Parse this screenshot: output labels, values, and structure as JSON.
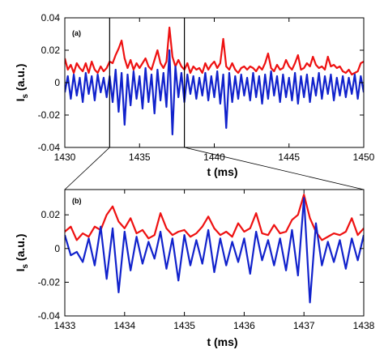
{
  "chart_data": [
    {
      "type": "line",
      "panel_label": "(a)",
      "xlabel": "t (ms)",
      "ylabel_main": "I",
      "ylabel_sub": "s",
      "ylabel_tail": " (a.u.)",
      "xlim": [
        1430,
        1450
      ],
      "ylim": [
        -0.04,
        0.04
      ],
      "x_ticks": [
        "1430",
        "1435",
        "1440",
        "1445",
        "1450"
      ],
      "y_ticks": [
        "-0.04",
        "-0.02",
        "0",
        "0.02",
        "0.04"
      ],
      "zoom_window": [
        1433,
        1438
      ],
      "series": [
        {
          "color": "#ee1111",
          "x": [
            1430.0,
            1430.2,
            1430.4,
            1430.6,
            1430.8,
            1431.0,
            1431.2,
            1431.4,
            1431.6,
            1431.8,
            1432.0,
            1432.2,
            1432.4,
            1432.6,
            1432.8,
            1433.0,
            1433.2,
            1433.4,
            1433.6,
            1433.8,
            1434.0,
            1434.2,
            1434.4,
            1434.6,
            1434.8,
            1435.0,
            1435.2,
            1435.4,
            1435.6,
            1435.8,
            1436.0,
            1436.2,
            1436.4,
            1436.6,
            1436.8,
            1437.0,
            1437.2,
            1437.4,
            1437.6,
            1437.8,
            1438.0,
            1438.2,
            1438.4,
            1438.6,
            1438.8,
            1439.0,
            1439.2,
            1439.4,
            1439.6,
            1439.8,
            1440.0,
            1440.2,
            1440.4,
            1440.6,
            1440.8,
            1441.0,
            1441.2,
            1441.4,
            1441.6,
            1441.8,
            1442.0,
            1442.2,
            1442.4,
            1442.6,
            1442.8,
            1443.0,
            1443.2,
            1443.4,
            1443.6,
            1443.8,
            1444.0,
            1444.2,
            1444.4,
            1444.6,
            1444.8,
            1445.0,
            1445.2,
            1445.4,
            1445.6,
            1445.8,
            1446.0,
            1446.2,
            1446.4,
            1446.6,
            1446.8,
            1447.0,
            1447.2,
            1447.4,
            1447.6,
            1447.8,
            1448.0,
            1448.2,
            1448.4,
            1448.6,
            1448.8,
            1449.0,
            1449.2,
            1449.4,
            1449.6,
            1449.8,
            1450.0
          ],
          "y": [
            0.015,
            0.008,
            0.011,
            0.006,
            0.012,
            0.009,
            0.007,
            0.012,
            0.006,
            0.013,
            0.008,
            0.006,
            0.01,
            0.007,
            0.009,
            0.013,
            0.012,
            0.017,
            0.021,
            0.026,
            0.015,
            0.009,
            0.014,
            0.008,
            0.012,
            0.009,
            0.012,
            0.015,
            0.01,
            0.008,
            0.014,
            0.02,
            0.012,
            0.009,
            0.013,
            0.034,
            0.016,
            0.01,
            0.014,
            0.01,
            0.008,
            0.012,
            0.006,
            0.01,
            0.008,
            0.009,
            0.006,
            0.012,
            0.008,
            0.011,
            0.013,
            0.009,
            0.012,
            0.027,
            0.01,
            0.008,
            0.012,
            0.008,
            0.006,
            0.009,
            0.01,
            0.008,
            0.01,
            0.009,
            0.007,
            0.01,
            0.008,
            0.012,
            0.018,
            0.009,
            0.007,
            0.011,
            0.008,
            0.009,
            0.014,
            0.01,
            0.008,
            0.012,
            0.017,
            0.008,
            0.009,
            0.012,
            0.01,
            0.016,
            0.011,
            0.009,
            0.01,
            0.008,
            0.016,
            0.01,
            0.011,
            0.009,
            0.01,
            0.007,
            0.006,
            0.008,
            0.005,
            0.006,
            0.007,
            0.012,
            0.013
          ]
        },
        {
          "color": "#1122cc",
          "x": [
            1430.0,
            1430.2,
            1430.4,
            1430.6,
            1430.8,
            1431.0,
            1431.2,
            1431.4,
            1431.6,
            1431.8,
            1432.0,
            1432.2,
            1432.4,
            1432.6,
            1432.8,
            1433.0,
            1433.2,
            1433.4,
            1433.6,
            1433.8,
            1434.0,
            1434.2,
            1434.4,
            1434.6,
            1434.8,
            1435.0,
            1435.2,
            1435.4,
            1435.6,
            1435.8,
            1436.0,
            1436.2,
            1436.4,
            1436.6,
            1436.8,
            1437.0,
            1437.2,
            1437.4,
            1437.6,
            1437.8,
            1438.0,
            1438.2,
            1438.4,
            1438.6,
            1438.8,
            1439.0,
            1439.2,
            1439.4,
            1439.6,
            1439.8,
            1440.0,
            1440.2,
            1440.4,
            1440.6,
            1440.8,
            1441.0,
            1441.2,
            1441.4,
            1441.6,
            1441.8,
            1442.0,
            1442.2,
            1442.4,
            1442.6,
            1442.8,
            1443.0,
            1443.2,
            1443.4,
            1443.6,
            1443.8,
            1444.0,
            1444.2,
            1444.4,
            1444.6,
            1444.8,
            1445.0,
            1445.2,
            1445.4,
            1445.6,
            1445.8,
            1446.0,
            1446.2,
            1446.4,
            1446.6,
            1446.8,
            1447.0,
            1447.2,
            1447.4,
            1447.6,
            1447.8,
            1448.0,
            1448.2,
            1448.4,
            1448.6,
            1448.8,
            1449.0,
            1449.2,
            1449.4,
            1449.6,
            1449.8,
            1450.0
          ],
          "y": [
            -0.006,
            0.004,
            -0.01,
            0.005,
            -0.008,
            0.003,
            -0.012,
            0.006,
            -0.007,
            0.004,
            -0.011,
            0.005,
            -0.006,
            0.003,
            -0.009,
            0.004,
            -0.012,
            0.008,
            -0.018,
            0.006,
            -0.026,
            0.005,
            -0.014,
            0.007,
            -0.01,
            0.004,
            -0.016,
            0.009,
            -0.012,
            0.005,
            -0.019,
            0.008,
            -0.011,
            0.006,
            -0.015,
            0.02,
            -0.032,
            0.01,
            -0.009,
            0.006,
            -0.012,
            0.005,
            -0.007,
            0.004,
            -0.01,
            0.003,
            -0.008,
            0.006,
            -0.011,
            0.004,
            -0.009,
            0.007,
            -0.013,
            0.005,
            -0.028,
            0.006,
            -0.012,
            0.004,
            -0.01,
            0.005,
            -0.008,
            0.003,
            -0.011,
            0.006,
            -0.009,
            0.004,
            -0.013,
            0.005,
            -0.01,
            0.007,
            -0.008,
            0.004,
            -0.012,
            0.005,
            -0.009,
            0.003,
            -0.011,
            0.006,
            -0.013,
            0.004,
            -0.009,
            0.005,
            -0.012,
            0.003,
            -0.008,
            0.006,
            -0.01,
            0.004,
            -0.007,
            0.005,
            -0.011,
            0.003,
            -0.008,
            0.004,
            -0.009,
            0.003,
            -0.007,
            0.005,
            -0.01,
            0.004,
            -0.006
          ]
        }
      ]
    },
    {
      "type": "line",
      "panel_label": "(b)",
      "xlabel": "t (ms)",
      "ylabel_main": "I",
      "ylabel_sub": "s",
      "ylabel_tail": " (a.u.)",
      "xlim": [
        1433,
        1438
      ],
      "ylim": [
        -0.04,
        0.035
      ],
      "x_ticks": [
        "1433",
        "1434",
        "1435",
        "1436",
        "1437",
        "1438"
      ],
      "y_ticks": [
        "-0.04",
        "-0.02",
        "0",
        "0.02"
      ],
      "series": [
        {
          "color": "#ee1111",
          "x": [
            1433.0,
            1433.1,
            1433.2,
            1433.3,
            1433.4,
            1433.5,
            1433.6,
            1433.7,
            1433.8,
            1433.9,
            1434.0,
            1434.1,
            1434.2,
            1434.3,
            1434.4,
            1434.5,
            1434.6,
            1434.7,
            1434.8,
            1434.9,
            1435.0,
            1435.1,
            1435.2,
            1435.3,
            1435.4,
            1435.5,
            1435.6,
            1435.7,
            1435.8,
            1435.9,
            1436.0,
            1436.1,
            1436.2,
            1436.3,
            1436.4,
            1436.5,
            1436.6,
            1436.7,
            1436.8,
            1436.9,
            1437.0,
            1437.1,
            1437.2,
            1437.3,
            1437.4,
            1437.5,
            1437.6,
            1437.7,
            1437.8,
            1437.9,
            1438.0
          ],
          "y": [
            0.01,
            0.013,
            0.005,
            0.009,
            0.007,
            0.013,
            0.011,
            0.02,
            0.025,
            0.016,
            0.012,
            0.018,
            0.009,
            0.011,
            0.006,
            0.008,
            0.021,
            0.012,
            0.008,
            0.01,
            0.011,
            0.007,
            0.009,
            0.013,
            0.019,
            0.012,
            0.008,
            0.01,
            0.007,
            0.015,
            0.01,
            0.012,
            0.021,
            0.009,
            0.008,
            0.014,
            0.009,
            0.01,
            0.017,
            0.02,
            0.032,
            0.018,
            0.01,
            0.005,
            0.007,
            0.009,
            0.008,
            0.01,
            0.018,
            0.008,
            0.012
          ]
        },
        {
          "color": "#1122cc",
          "x": [
            1433.0,
            1433.1,
            1433.2,
            1433.3,
            1433.4,
            1433.5,
            1433.6,
            1433.7,
            1433.8,
            1433.9,
            1434.0,
            1434.1,
            1434.2,
            1434.3,
            1434.4,
            1434.5,
            1434.6,
            1434.7,
            1434.8,
            1434.9,
            1435.0,
            1435.1,
            1435.2,
            1435.3,
            1435.4,
            1435.5,
            1435.6,
            1435.7,
            1435.8,
            1435.9,
            1436.0,
            1436.1,
            1436.2,
            1436.3,
            1436.4,
            1436.5,
            1436.6,
            1436.7,
            1436.8,
            1436.9,
            1437.0,
            1437.1,
            1437.2,
            1437.3,
            1437.4,
            1437.5,
            1437.6,
            1437.7,
            1437.8,
            1437.9,
            1438.0
          ],
          "y": [
            0.008,
            -0.004,
            -0.002,
            -0.008,
            0.006,
            -0.01,
            0.013,
            -0.018,
            0.012,
            -0.026,
            0.01,
            -0.013,
            0.007,
            -0.009,
            0.004,
            -0.006,
            0.01,
            -0.012,
            0.006,
            -0.019,
            0.008,
            -0.01,
            0.005,
            -0.009,
            0.011,
            -0.014,
            0.006,
            -0.01,
            0.004,
            -0.008,
            0.006,
            -0.015,
            0.01,
            -0.007,
            0.005,
            -0.01,
            0.006,
            -0.013,
            0.011,
            -0.016,
            0.03,
            -0.032,
            0.015,
            -0.01,
            0.004,
            -0.008,
            0.005,
            -0.012,
            0.006,
            -0.007,
            0.008
          ]
        }
      ]
    }
  ]
}
